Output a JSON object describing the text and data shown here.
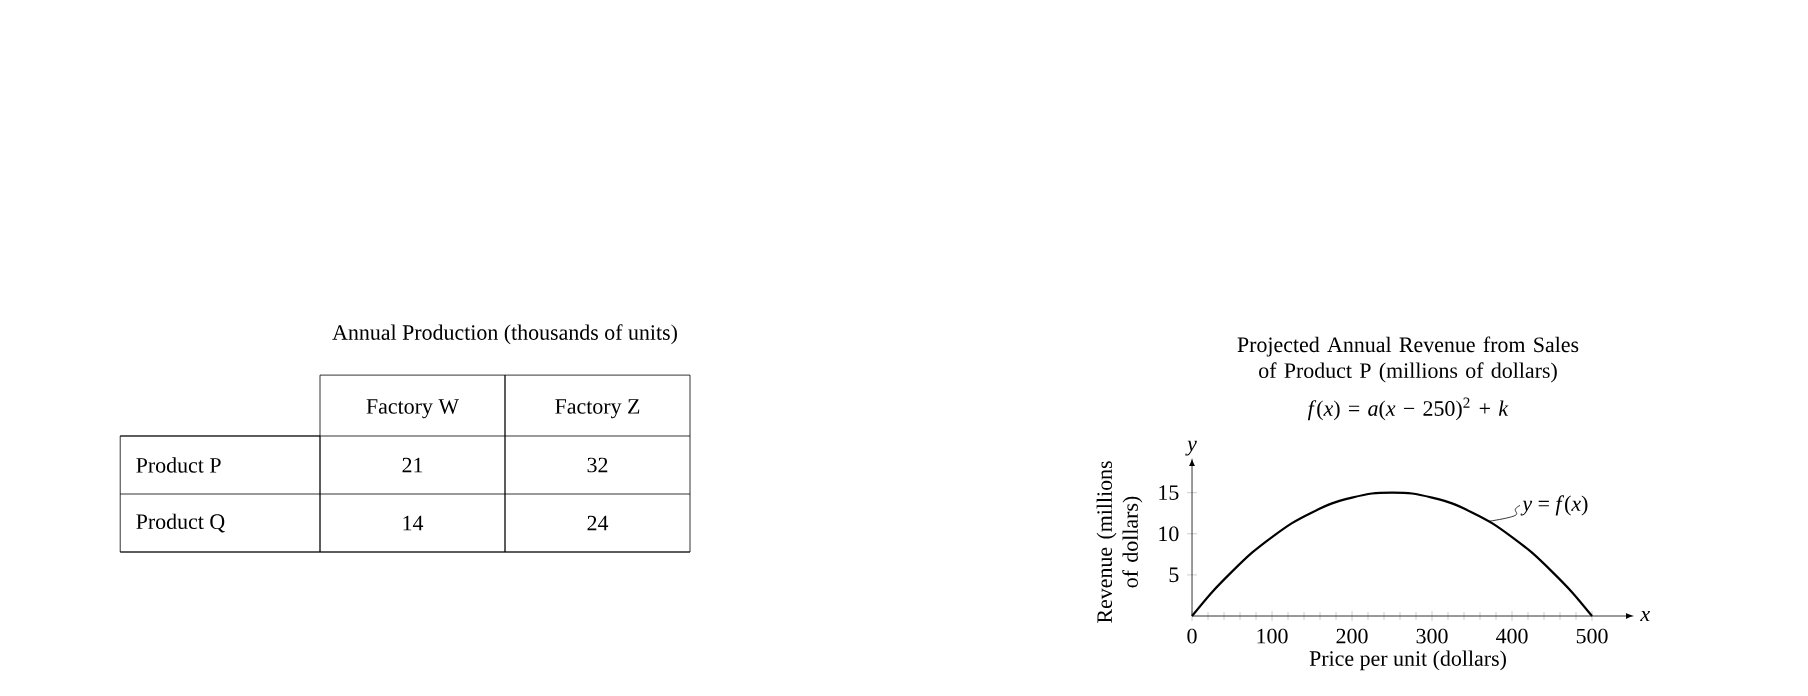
{
  "chart_data": [
    {
      "type": "heatmap",
      "title": "Annual Production (thousands of units)",
      "categories": [
        "Factory W",
        "Factory Z"
      ],
      "y_categories": [
        "Product P",
        "Product Q"
      ],
      "cells": [
        [
          21,
          32
        ],
        [
          14,
          24
        ]
      ],
      "data_labels": true
    },
    {
      "type": "line",
      "title": "Projected Annual Revenue from Sales of Product P (millions of dollars)",
      "subtitle": "*f*(*x*) = *a*(*x* − 250)$^{2}$ + *k*",
      "xlabel": "Price per unit (dollars)",
      "ylabel": "Revenue (millions of dollars)",
      "x": [
        0,
        25,
        50,
        75,
        100,
        125,
        150,
        175,
        200,
        225,
        250,
        275,
        300,
        325,
        350,
        375,
        400,
        425,
        450,
        475,
        500
      ],
      "values": [
        0,
        2.9,
        5.4,
        7.7,
        9.6,
        11.3,
        12.6,
        13.7,
        14.4,
        14.9,
        15,
        14.9,
        14.4,
        13.7,
        12.6,
        11.3,
        9.6,
        7.7,
        5.4,
        2.9,
        0
      ],
      "color": "#000000",
      "xlim": [
        0,
        540
      ],
      "ylim": [
        0,
        18
      ],
      "xticks": [
        0,
        100,
        200,
        300,
        400,
        500
      ],
      "yticks": [
        5,
        10,
        15
      ],
      "annotations": [
        {
          "text": "*y* = *f*(*x*)",
          "x": 370,
          "y": 11.5
        },
        "*y*",
        "*x*"
      ]
    }
  ]
}
